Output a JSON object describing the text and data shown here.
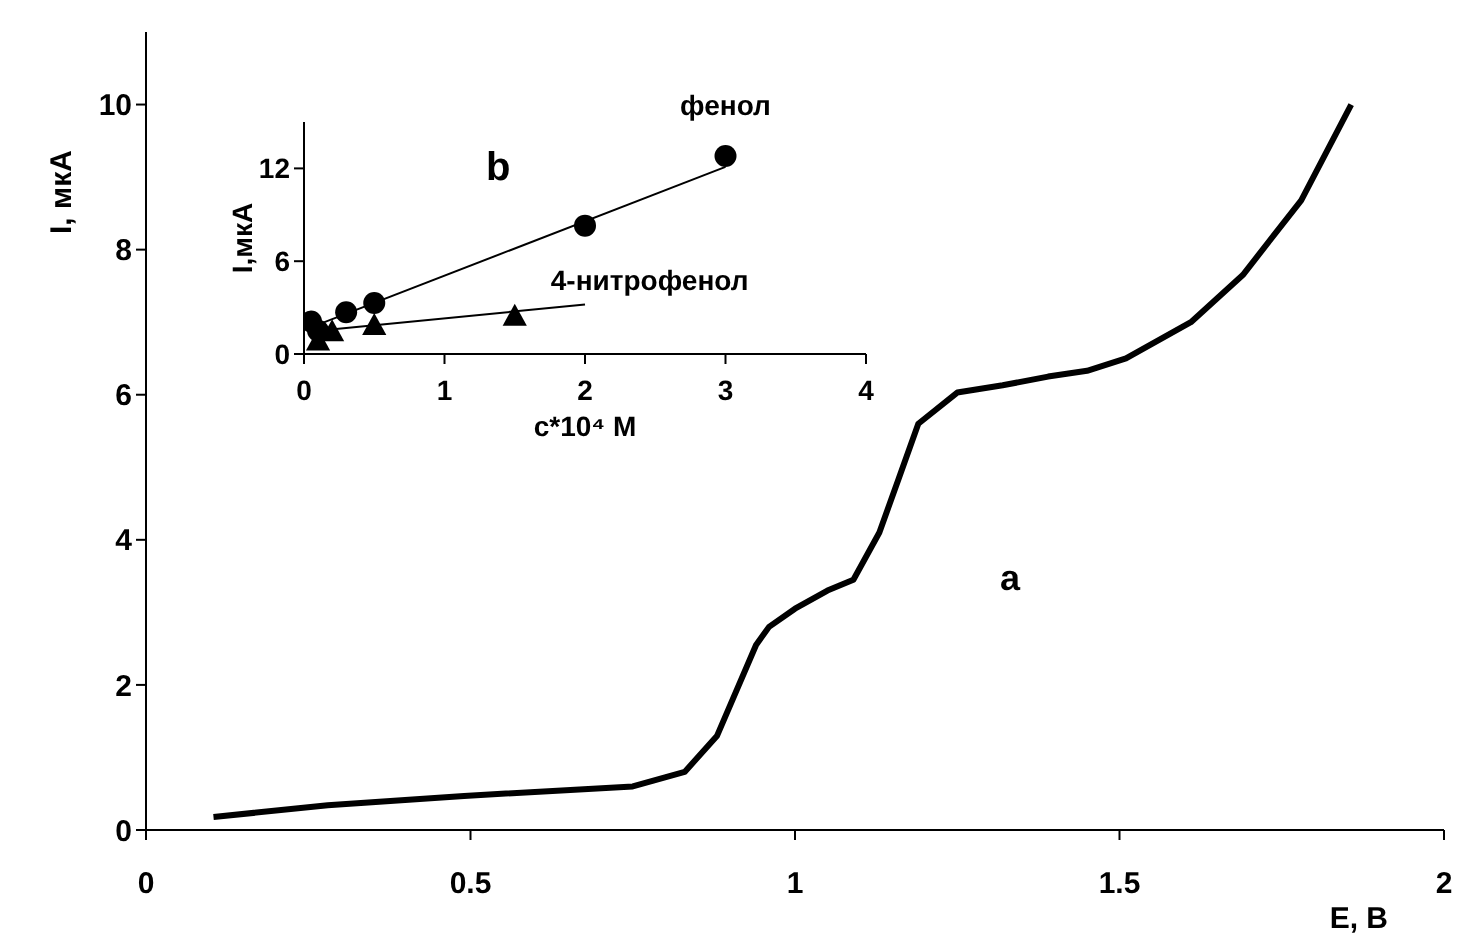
{
  "chart_data": [
    {
      "type": "line",
      "xlabel": "E, B",
      "ylabel": "I, мкА",
      "annotations": [
        "a"
      ],
      "xlim": [
        0,
        2
      ],
      "ylim": [
        0,
        11
      ],
      "xticks": [
        0,
        0.5,
        1,
        1.5,
        2
      ],
      "yticks": [
        0,
        2,
        4,
        6,
        8,
        10
      ],
      "grid": false,
      "marker": "none",
      "line_style": "solid",
      "series": [
        {
          "color": "#000000",
          "x": [
            0.104,
            0.28,
            0.49,
            0.75,
            0.83,
            0.88,
            0.94,
            0.96,
            1.0,
            1.05,
            1.09,
            1.13,
            1.16,
            1.19,
            1.25,
            1.32,
            1.39,
            1.45,
            1.51,
            1.61,
            1.69,
            1.78,
            1.857
          ],
          "values": [
            0.18,
            0.34,
            0.47,
            0.6,
            0.8,
            1.3,
            2.55,
            2.8,
            3.05,
            3.3,
            3.45,
            4.1,
            4.85,
            5.6,
            6.03,
            6.13,
            6.25,
            6.33,
            6.5,
            7.0,
            7.65,
            8.68,
            10.0
          ]
        }
      ]
    },
    {
      "type": "scatter",
      "xlabel": "c*10⁴ M",
      "ylabel": "I,мкА",
      "annotations": [
        "b"
      ],
      "xlim": [
        0,
        4
      ],
      "ylim": [
        0,
        15
      ],
      "xticks": [
        0,
        1,
        2,
        3,
        4
      ],
      "yticks": [
        0,
        6,
        12
      ],
      "grid": false,
      "series": [
        {
          "name": "фенол",
          "marker": "circle",
          "color": "#000000",
          "x": [
            0.05,
            0.1,
            0.3,
            0.5,
            2,
            3
          ],
          "values": [
            2.1,
            1.5,
            2.7,
            3.3,
            8.3,
            12.8
          ]
        },
        {
          "name": "4-нитрофенол",
          "marker": "triangle",
          "color": "#000000",
          "x": [
            0.1,
            0.2,
            0.5,
            1.5
          ],
          "values": [
            0.8,
            1.4,
            1.8,
            2.4
          ]
        },
        {
          "type": "line",
          "marker": "none",
          "color": "#000000",
          "x": [
            0.1,
            3
          ],
          "values": [
            1.9,
            12.1
          ]
        },
        {
          "type": "line",
          "marker": "none",
          "color": "#000000",
          "x": [
            0.1,
            2
          ],
          "values": [
            1.5,
            3.2
          ]
        }
      ]
    }
  ]
}
